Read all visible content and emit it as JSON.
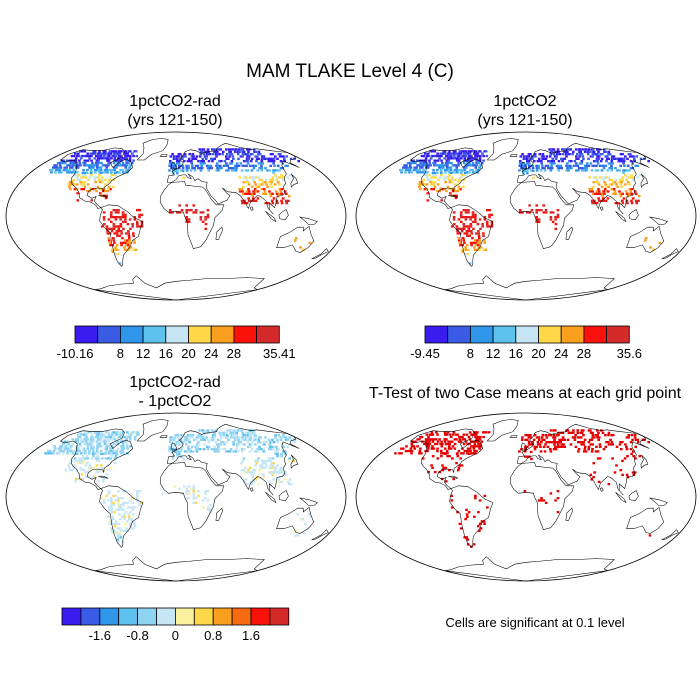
{
  "title": "MAM TLAKE Level 4 (C)",
  "panels": [
    {
      "id": "rad",
      "title_line1": "1pctCO2-rad",
      "title_line2": "(yrs 121-150)"
    },
    {
      "id": "ctl",
      "title_line1": "1pctCO2",
      "title_line2": "(yrs 121-150)"
    },
    {
      "id": "diff",
      "title_line1": "1pctCO2-rad",
      "title_line2": "- 1pctCO2"
    },
    {
      "id": "ttest",
      "title_line1": "T-Test of two Case means at each grid point",
      "title_line2": ""
    }
  ],
  "colorbars": [
    {
      "id": "cb1",
      "labels": [
        "-10.16",
        "8",
        "12",
        "16",
        "20",
        "24",
        "28",
        "35.41"
      ],
      "colors": [
        "#3a1cf0",
        "#3a5be6",
        "#2f96ea",
        "#5fc1ee",
        "#c6e6f5",
        "#ffd84a",
        "#fb9f1f",
        "#f8120b",
        "#d42a2a"
      ]
    },
    {
      "id": "cb2",
      "labels": [
        "-9.45",
        "8",
        "12",
        "16",
        "20",
        "24",
        "28",
        "35.6"
      ],
      "colors": [
        "#3a1cf0",
        "#3a5be6",
        "#2f96ea",
        "#5fc1ee",
        "#c6e6f5",
        "#ffd84a",
        "#fb9f1f",
        "#f8120b",
        "#d42a2a"
      ]
    },
    {
      "id": "cb3",
      "labels": [
        "-1.6",
        "-0.8",
        "0",
        "0.8",
        "1.6"
      ],
      "colors": [
        "#3a1cf0",
        "#3a5be6",
        "#2f96ea",
        "#5fc1ee",
        "#8fd3f2",
        "#c6e6f5",
        "#fbf1a0",
        "#ffd84a",
        "#fb9f1f",
        "#f86a12",
        "#f8120b",
        "#d42a2a"
      ]
    }
  ],
  "significance_note": "Cells are significant at 0.1 level",
  "significance_color": "#e60000"
}
